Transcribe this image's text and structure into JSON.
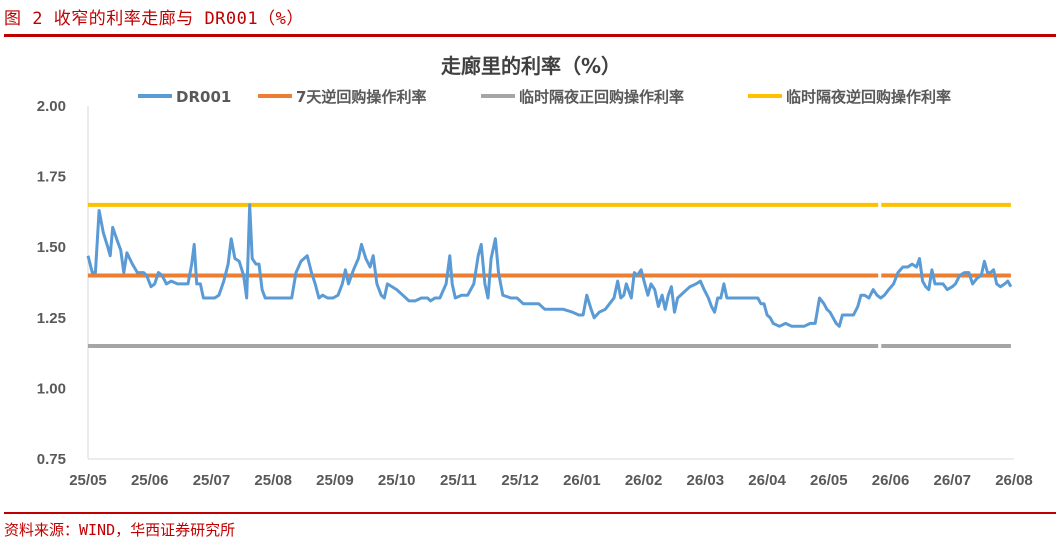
{
  "figure": {
    "caption": "图 2 收窄的利率走廊与 DR001（%）",
    "source": "资料来源：WIND，华西证券研究所",
    "accent_color": "#c00000"
  },
  "chart_data": {
    "type": "line",
    "title": "走廊里的利率（%）",
    "x_tick_labels": [
      "25/05",
      "25/06",
      "25/07",
      "25/08",
      "25/09",
      "25/10",
      "25/11",
      "25/12",
      "26/01",
      "26/02",
      "26/03",
      "26/04",
      "26/05",
      "26/06",
      "26/07",
      "26/08"
    ],
    "y_ticks": [
      "2.00",
      "1.75",
      "1.50",
      "1.25",
      "1.00",
      "0.75"
    ],
    "ylim": [
      0.75,
      2.0
    ],
    "grid": false,
    "legend_position": "top",
    "series": [
      {
        "name": "DR001",
        "color": "#5b9bd5",
        "kind": "daily",
        "points": [
          [
            0.0,
            1.47
          ],
          [
            0.07,
            1.41
          ],
          [
            0.12,
            1.41
          ],
          [
            0.18,
            1.63
          ],
          [
            0.25,
            1.55
          ],
          [
            0.32,
            1.5
          ],
          [
            0.36,
            1.47
          ],
          [
            0.4,
            1.57
          ],
          [
            0.48,
            1.52
          ],
          [
            0.53,
            1.49
          ],
          [
            0.58,
            1.41
          ],
          [
            0.63,
            1.48
          ],
          [
            0.72,
            1.44
          ],
          [
            0.8,
            1.41
          ],
          [
            0.9,
            1.41
          ],
          [
            0.95,
            1.4
          ],
          [
            1.02,
            1.36
          ],
          [
            1.08,
            1.37
          ],
          [
            1.14,
            1.41
          ],
          [
            1.2,
            1.4
          ],
          [
            1.27,
            1.37
          ],
          [
            1.35,
            1.38
          ],
          [
            1.45,
            1.37
          ],
          [
            1.55,
            1.37
          ],
          [
            1.62,
            1.37
          ],
          [
            1.68,
            1.44
          ],
          [
            1.72,
            1.51
          ],
          [
            1.76,
            1.37
          ],
          [
            1.82,
            1.37
          ],
          [
            1.87,
            1.32
          ],
          [
            1.95,
            1.32
          ],
          [
            2.05,
            1.32
          ],
          [
            2.12,
            1.33
          ],
          [
            2.2,
            1.38
          ],
          [
            2.27,
            1.44
          ],
          [
            2.32,
            1.53
          ],
          [
            2.38,
            1.46
          ],
          [
            2.45,
            1.45
          ],
          [
            2.52,
            1.4
          ],
          [
            2.57,
            1.32
          ],
          [
            2.62,
            1.65
          ],
          [
            2.66,
            1.46
          ],
          [
            2.72,
            1.44
          ],
          [
            2.77,
            1.44
          ],
          [
            2.82,
            1.35
          ],
          [
            2.87,
            1.32
          ],
          [
            2.95,
            1.32
          ],
          [
            3.1,
            1.32
          ],
          [
            3.2,
            1.32
          ],
          [
            3.3,
            1.32
          ],
          [
            3.37,
            1.41
          ],
          [
            3.45,
            1.45
          ],
          [
            3.55,
            1.47
          ],
          [
            3.62,
            1.41
          ],
          [
            3.68,
            1.37
          ],
          [
            3.74,
            1.32
          ],
          [
            3.8,
            1.33
          ],
          [
            3.88,
            1.32
          ],
          [
            3.97,
            1.32
          ],
          [
            4.05,
            1.33
          ],
          [
            4.12,
            1.37
          ],
          [
            4.17,
            1.42
          ],
          [
            4.22,
            1.37
          ],
          [
            4.3,
            1.42
          ],
          [
            4.38,
            1.46
          ],
          [
            4.43,
            1.51
          ],
          [
            4.5,
            1.46
          ],
          [
            4.57,
            1.43
          ],
          [
            4.62,
            1.47
          ],
          [
            4.68,
            1.37
          ],
          [
            4.75,
            1.33
          ],
          [
            4.8,
            1.32
          ],
          [
            4.85,
            1.37
          ],
          [
            5.0,
            1.35
          ],
          [
            5.1,
            1.33
          ],
          [
            5.2,
            1.31
          ],
          [
            5.3,
            1.31
          ],
          [
            5.4,
            1.32
          ],
          [
            5.5,
            1.32
          ],
          [
            5.55,
            1.31
          ],
          [
            5.62,
            1.32
          ],
          [
            5.7,
            1.32
          ],
          [
            5.8,
            1.37
          ],
          [
            5.86,
            1.47
          ],
          [
            5.9,
            1.37
          ],
          [
            5.95,
            1.32
          ],
          [
            6.05,
            1.33
          ],
          [
            6.15,
            1.33
          ],
          [
            6.25,
            1.37
          ],
          [
            6.32,
            1.47
          ],
          [
            6.37,
            1.51
          ],
          [
            6.43,
            1.37
          ],
          [
            6.48,
            1.32
          ],
          [
            6.53,
            1.46
          ],
          [
            6.6,
            1.53
          ],
          [
            6.65,
            1.41
          ],
          [
            6.72,
            1.33
          ],
          [
            6.85,
            1.32
          ],
          [
            6.95,
            1.32
          ],
          [
            7.05,
            1.3
          ],
          [
            7.15,
            1.3
          ],
          [
            7.25,
            1.3
          ],
          [
            7.3,
            1.3
          ],
          [
            7.4,
            1.28
          ],
          [
            7.55,
            1.28
          ],
          [
            7.7,
            1.28
          ],
          [
            7.85,
            1.27
          ],
          [
            7.95,
            1.26
          ],
          [
            8.02,
            1.26
          ],
          [
            8.08,
            1.33
          ],
          [
            8.15,
            1.28
          ],
          [
            8.2,
            1.25
          ],
          [
            8.28,
            1.27
          ],
          [
            8.38,
            1.28
          ],
          [
            8.45,
            1.3
          ],
          [
            8.52,
            1.32
          ],
          [
            8.58,
            1.38
          ],
          [
            8.63,
            1.32
          ],
          [
            8.68,
            1.33
          ],
          [
            8.72,
            1.37
          ],
          [
            8.8,
            1.32
          ],
          [
            8.85,
            1.41
          ],
          [
            8.9,
            1.4
          ],
          [
            8.96,
            1.42
          ],
          [
            9.02,
            1.37
          ],
          [
            9.07,
            1.33
          ],
          [
            9.12,
            1.37
          ],
          [
            9.18,
            1.35
          ],
          [
            9.24,
            1.29
          ],
          [
            9.3,
            1.33
          ],
          [
            9.35,
            1.28
          ],
          [
            9.4,
            1.33
          ],
          [
            9.45,
            1.36
          ],
          [
            9.5,
            1.27
          ],
          [
            9.55,
            1.32
          ],
          [
            9.65,
            1.34
          ],
          [
            9.75,
            1.36
          ],
          [
            9.85,
            1.37
          ],
          [
            9.92,
            1.38
          ],
          [
            9.98,
            1.35
          ],
          [
            10.05,
            1.32
          ],
          [
            10.1,
            1.29
          ],
          [
            10.15,
            1.27
          ],
          [
            10.2,
            1.32
          ],
          [
            10.25,
            1.32
          ],
          [
            10.3,
            1.37
          ],
          [
            10.35,
            1.32
          ],
          [
            10.45,
            1.32
          ],
          [
            10.55,
            1.32
          ],
          [
            10.65,
            1.32
          ],
          [
            10.75,
            1.32
          ],
          [
            10.85,
            1.32
          ],
          [
            10.9,
            1.3
          ],
          [
            10.95,
            1.3
          ],
          [
            11.0,
            1.26
          ],
          [
            11.05,
            1.25
          ],
          [
            11.1,
            1.23
          ],
          [
            11.2,
            1.22
          ],
          [
            11.3,
            1.23
          ],
          [
            11.4,
            1.22
          ],
          [
            11.5,
            1.22
          ],
          [
            11.6,
            1.22
          ],
          [
            11.7,
            1.23
          ],
          [
            11.78,
            1.23
          ],
          [
            11.85,
            1.32
          ],
          [
            11.92,
            1.3
          ],
          [
            11.97,
            1.28
          ],
          [
            12.02,
            1.27
          ],
          [
            12.07,
            1.25
          ],
          [
            12.12,
            1.23
          ],
          [
            12.17,
            1.22
          ],
          [
            12.22,
            1.26
          ],
          [
            12.3,
            1.26
          ],
          [
            12.4,
            1.26
          ],
          [
            12.47,
            1.29
          ],
          [
            12.52,
            1.33
          ],
          [
            12.58,
            1.33
          ],
          [
            12.65,
            1.32
          ],
          [
            12.72,
            1.35
          ],
          [
            12.78,
            1.33
          ],
          [
            12.84,
            1.32
          ],
          [
            12.9,
            1.33
          ],
          [
            12.97,
            1.35
          ],
          [
            13.05,
            1.37
          ],
          [
            13.12,
            1.41
          ],
          [
            13.2,
            1.43
          ],
          [
            13.28,
            1.43
          ],
          [
            13.35,
            1.44
          ],
          [
            13.42,
            1.43
          ],
          [
            13.47,
            1.46
          ],
          [
            13.52,
            1.38
          ],
          [
            13.57,
            1.36
          ],
          [
            13.62,
            1.35
          ],
          [
            13.67,
            1.42
          ],
          [
            13.72,
            1.37
          ],
          [
            13.78,
            1.37
          ],
          [
            13.85,
            1.37
          ],
          [
            13.92,
            1.35
          ],
          [
            14.0,
            1.36
          ],
          [
            14.05,
            1.37
          ],
          [
            14.12,
            1.4
          ],
          [
            14.2,
            1.41
          ],
          [
            14.27,
            1.41
          ],
          [
            14.33,
            1.37
          ],
          [
            14.4,
            1.39
          ],
          [
            14.47,
            1.4
          ],
          [
            14.52,
            1.45
          ],
          [
            14.57,
            1.41
          ],
          [
            14.62,
            1.41
          ],
          [
            14.67,
            1.42
          ],
          [
            14.72,
            1.37
          ],
          [
            14.78,
            1.36
          ],
          [
            14.85,
            1.37
          ],
          [
            14.9,
            1.38
          ],
          [
            14.95,
            1.36
          ]
        ]
      },
      {
        "name": "7天逆回购操作利率",
        "color": "#ed7d31",
        "kind": "step",
        "value": 1.4
      },
      {
        "name": "临时隔夜正回购操作利率",
        "color": "#a5a5a5",
        "kind": "step",
        "value": 1.15
      },
      {
        "name": "临时隔夜逆回购操作利率",
        "color": "#ffc000",
        "kind": "step",
        "value": 1.65
      }
    ]
  }
}
